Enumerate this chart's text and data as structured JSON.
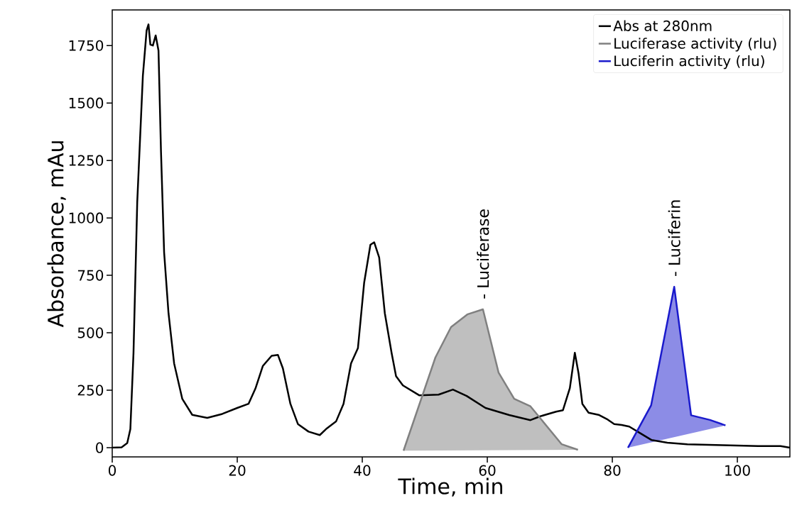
{
  "chart_data": {
    "type": "line",
    "xlabel": "Time, min",
    "ylabel": "Absorbance, mAu",
    "xlim": [
      0,
      108.4
    ],
    "ylim": [
      -40,
      1905
    ],
    "xticks": [
      0,
      20,
      40,
      60,
      80,
      100
    ],
    "yticks": [
      0,
      250,
      500,
      750,
      1000,
      1250,
      1500,
      1750
    ],
    "legend": "top right",
    "grid": false,
    "marker": "none",
    "line_style": "solid",
    "series": [
      {
        "name": "Abs at 280nm",
        "color": "#000000",
        "x": [
          0,
          1.5,
          2.4,
          2.9,
          3.4,
          4.0,
          4.9,
          5.5,
          5.8,
          6.1,
          6.5,
          6.95,
          7.4,
          7.8,
          8.3,
          9.0,
          9.9,
          11.2,
          12.8,
          15.2,
          17.6,
          20.0,
          21.8,
          22.9,
          24.1,
          25.5,
          26.5,
          27.3,
          28.5,
          29.7,
          31.4,
          33.2,
          34.2,
          35.8,
          37.0,
          38.2,
          39.3,
          40.3,
          41.3,
          41.9,
          42.7,
          43.6,
          44.7,
          45.4,
          46.5,
          49.1,
          52.2,
          54.5,
          56.7,
          59.7,
          63.5,
          66.9,
          68.4,
          71.0,
          72.1,
          73.2,
          74.0,
          74.6,
          75.2,
          76.2,
          77.8,
          79.1,
          80.3,
          81.5,
          82.7,
          84.7,
          86.3,
          88.8,
          92.0,
          97.7,
          103.3,
          106.9,
          108.4
        ],
        "values": [
          0,
          2,
          20,
          81,
          411,
          1069,
          1618,
          1816,
          1842,
          1754,
          1750,
          1794,
          1728,
          1289,
          850,
          586,
          367,
          213,
          143,
          130,
          147,
          173,
          191,
          257,
          356,
          400,
          404,
          345,
          191,
          103,
          70,
          55,
          81,
          114,
          191,
          367,
          433,
          718,
          883,
          894,
          828,
          586,
          411,
          311,
          271,
          228,
          231,
          253,
          225,
          173,
          142,
          120,
          136,
          157,
          163,
          259,
          413,
          323,
          191,
          152,
          143,
          125,
          103,
          99,
          92,
          59,
          33,
          22,
          15,
          11,
          7,
          7,
          0
        ]
      },
      {
        "name": "Luciferase activity (rlu)",
        "color": "#808080",
        "type": "area",
        "x": [
          46.6,
          51.7,
          54.2,
          56.8,
          59.3,
          61.8,
          64.3,
          66.9,
          71.9,
          74.5
        ],
        "values": [
          -13,
          393,
          525,
          580,
          602,
          327,
          213,
          180,
          15,
          -9
        ]
      },
      {
        "name": "Luciferin activity (rlu)",
        "color": "#1a1acc",
        "type": "area",
        "x": [
          82.5,
          86.2,
          89.9,
          92.6,
          95.6,
          98.1
        ],
        "values": [
          0,
          184,
          700,
          141,
          121,
          97
        ]
      }
    ],
    "annotations": [
      "- Luciferase",
      "- Luciferin"
    ]
  }
}
